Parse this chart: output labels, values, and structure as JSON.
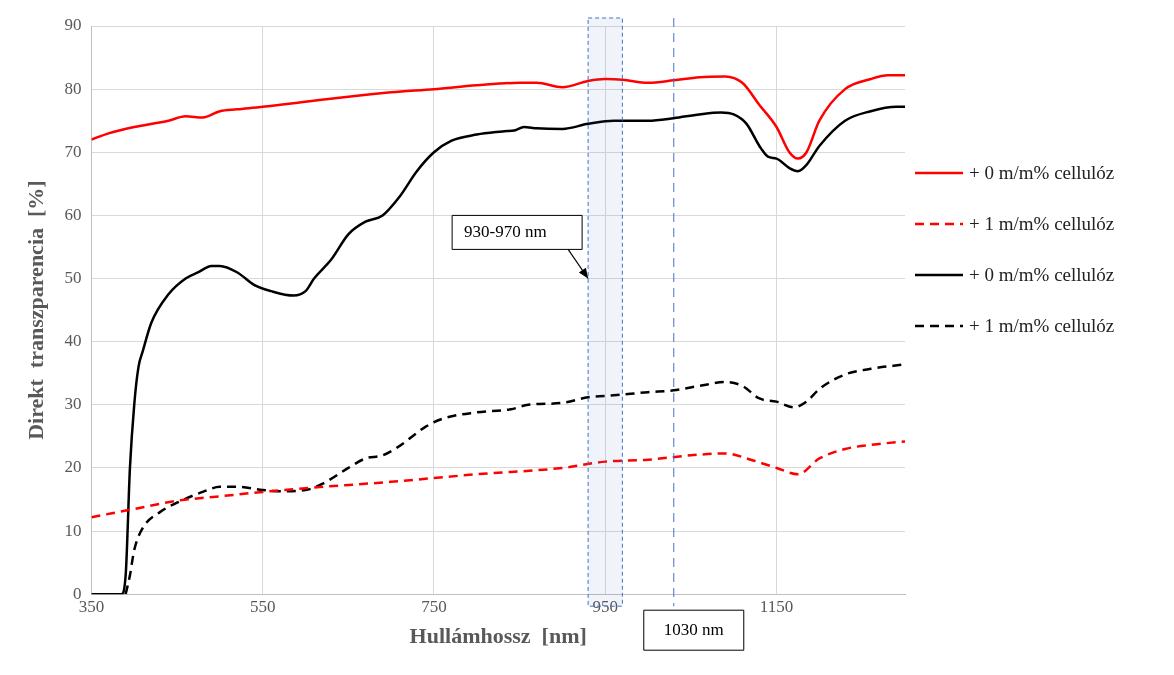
{
  "chart_data": {
    "type": "line",
    "xlabel": "Hullámhossz  [nm]",
    "ylabel": "Direkt  transzparencia  [%]",
    "xlim": [
      350,
      1300
    ],
    "xticks": [
      350,
      550,
      750,
      950,
      1150
    ],
    "ylim": [
      0,
      90
    ],
    "yticks": [
      0,
      10,
      20,
      30,
      40,
      50,
      60,
      70,
      80,
      90
    ],
    "grid": true,
    "legend": "right",
    "marker": "none",
    "bands": [
      {
        "axis": "x",
        "from": 930,
        "to": 970,
        "label": "930-970 nm",
        "color": "#4472c4"
      }
    ],
    "ref_lines": [
      {
        "axis": "x",
        "value": 1030,
        "label": "1030 nm",
        "color": "#4472c4",
        "line_style": "dashed"
      }
    ],
    "series": [
      {
        "name": "+ 0 m/m% cellulóz",
        "color": "#ff0000",
        "line_style": "solid",
        "x": [
          350,
          370,
          400,
          440,
          460,
          480,
          500,
          520,
          550,
          600,
          650,
          700,
          750,
          800,
          850,
          870,
          900,
          930,
          950,
          970,
          1000,
          1030,
          1060,
          1090,
          1110,
          1130,
          1150,
          1165,
          1175,
          1185,
          1200,
          1230,
          1260,
          1280,
          1300
        ],
        "values": [
          72,
          73,
          74,
          75,
          75.7,
          75.5,
          76.5,
          76.8,
          77.2,
          78,
          78.8,
          79.5,
          80,
          80.6,
          81,
          81,
          80.3,
          81.3,
          81.6,
          81.5,
          81,
          81.4,
          81.9,
          82,
          81,
          77.5,
          74,
          70,
          69,
          70,
          75,
          80,
          81.6,
          82.2,
          82.2
        ]
      },
      {
        "name": "+ 1 m/m% cellulóz",
        "color": "#ff0000",
        "line_style": "dashed",
        "x": [
          350,
          400,
          450,
          500,
          550,
          600,
          700,
          800,
          900,
          950,
          1000,
          1050,
          1090,
          1120,
          1150,
          1175,
          1200,
          1230,
          1270,
          1300
        ],
        "values": [
          12.2,
          13.5,
          14.8,
          15.5,
          16.2,
          16.8,
          17.8,
          19,
          20,
          21,
          21.3,
          22,
          22.3,
          21.3,
          20,
          19,
          21.5,
          23,
          23.8,
          24.2
        ]
      },
      {
        "name": "+ 0 m/m% cellulóz",
        "color": "#000000",
        "line_style": "solid",
        "x": [
          350,
          370,
          385,
          390,
          395,
          400,
          405,
          410,
          420,
          440,
          460,
          475,
          490,
          500,
          520,
          540,
          560,
          586,
          600,
          610,
          630,
          650,
          670,
          690,
          710,
          730,
          750,
          770,
          800,
          830,
          845,
          855,
          870,
          900,
          930,
          960,
          1000,
          1030,
          1060,
          1085,
          1100,
          1115,
          1130,
          1140,
          1150,
          1165,
          1175,
          1185,
          1200,
          1230,
          1260,
          1290,
          1300
        ],
        "values": [
          0,
          0,
          0,
          3,
          20,
          30,
          36,
          38.5,
          43,
          47.5,
          50,
          51,
          52,
          52,
          51,
          49,
          48,
          47.3,
          48,
          50,
          53,
          57,
          59,
          60,
          63,
          67,
          70,
          71.8,
          72.8,
          73.3,
          73.5,
          74,
          73.8,
          73.7,
          74.5,
          75,
          75,
          75.4,
          76,
          76.3,
          76,
          74.5,
          71,
          69.3,
          69,
          67.5,
          67,
          68,
          71,
          75,
          76.5,
          77.2,
          77.2
        ]
      },
      {
        "name": "+ 1 m/m% cellulóz",
        "color": "#000000",
        "line_style": "dashed",
        "x": [
          390,
          395,
          400,
          410,
          430,
          450,
          480,
          500,
          520,
          550,
          570,
          600,
          620,
          650,
          670,
          690,
          710,
          740,
          760,
          800,
          840,
          860,
          900,
          930,
          960,
          1000,
          1030,
          1060,
          1090,
          1110,
          1130,
          1150,
          1170,
          1185,
          1200,
          1230,
          1260,
          1300
        ],
        "values": [
          0,
          3,
          7,
          10.5,
          13,
          14.5,
          16.2,
          17,
          17,
          16.5,
          16.3,
          16.5,
          17.5,
          20,
          21.5,
          22,
          23.5,
          26.5,
          27.8,
          28.8,
          29.3,
          30,
          30.3,
          31.2,
          31.5,
          32,
          32.3,
          33,
          33.6,
          33,
          31,
          30.5,
          29.6,
          30.5,
          32.5,
          34.8,
          35.7,
          36.4
        ]
      }
    ]
  }
}
